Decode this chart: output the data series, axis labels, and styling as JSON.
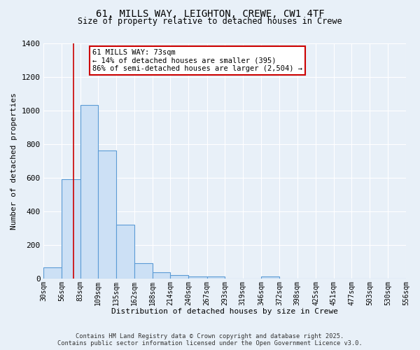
{
  "title": "61, MILLS WAY, LEIGHTON, CREWE, CW1 4TF",
  "subtitle": "Size of property relative to detached houses in Crewe",
  "xlabel": "Distribution of detached houses by size in Crewe",
  "ylabel": "Number of detached properties",
  "bin_edges": [
    30,
    56,
    83,
    109,
    135,
    162,
    188,
    214,
    240,
    267,
    293,
    319,
    346,
    372,
    398,
    425,
    451,
    477,
    503,
    530,
    556
  ],
  "bar_heights": [
    65,
    590,
    1030,
    760,
    320,
    90,
    35,
    20,
    10,
    10,
    0,
    0,
    10,
    0,
    0,
    0,
    0,
    0,
    0,
    0
  ],
  "bar_color": "#cce0f5",
  "bar_edge_color": "#5b9bd5",
  "bar_edge_width": 0.8,
  "red_line_x": 73,
  "red_line_color": "#cc0000",
  "annotation_text": "61 MILLS WAY: 73sqm\n← 14% of detached houses are smaller (395)\n86% of semi-detached houses are larger (2,504) →",
  "annotation_box_color": "#ffffff",
  "annotation_box_edge": "#cc0000",
  "ylim": [
    0,
    1400
  ],
  "yticks": [
    0,
    200,
    400,
    600,
    800,
    1000,
    1200,
    1400
  ],
  "background_color": "#e8f0f8",
  "grid_color": "#ffffff",
  "footer_line1": "Contains HM Land Registry data © Crown copyright and database right 2025.",
  "footer_line2": "Contains public sector information licensed under the Open Government Licence v3.0."
}
